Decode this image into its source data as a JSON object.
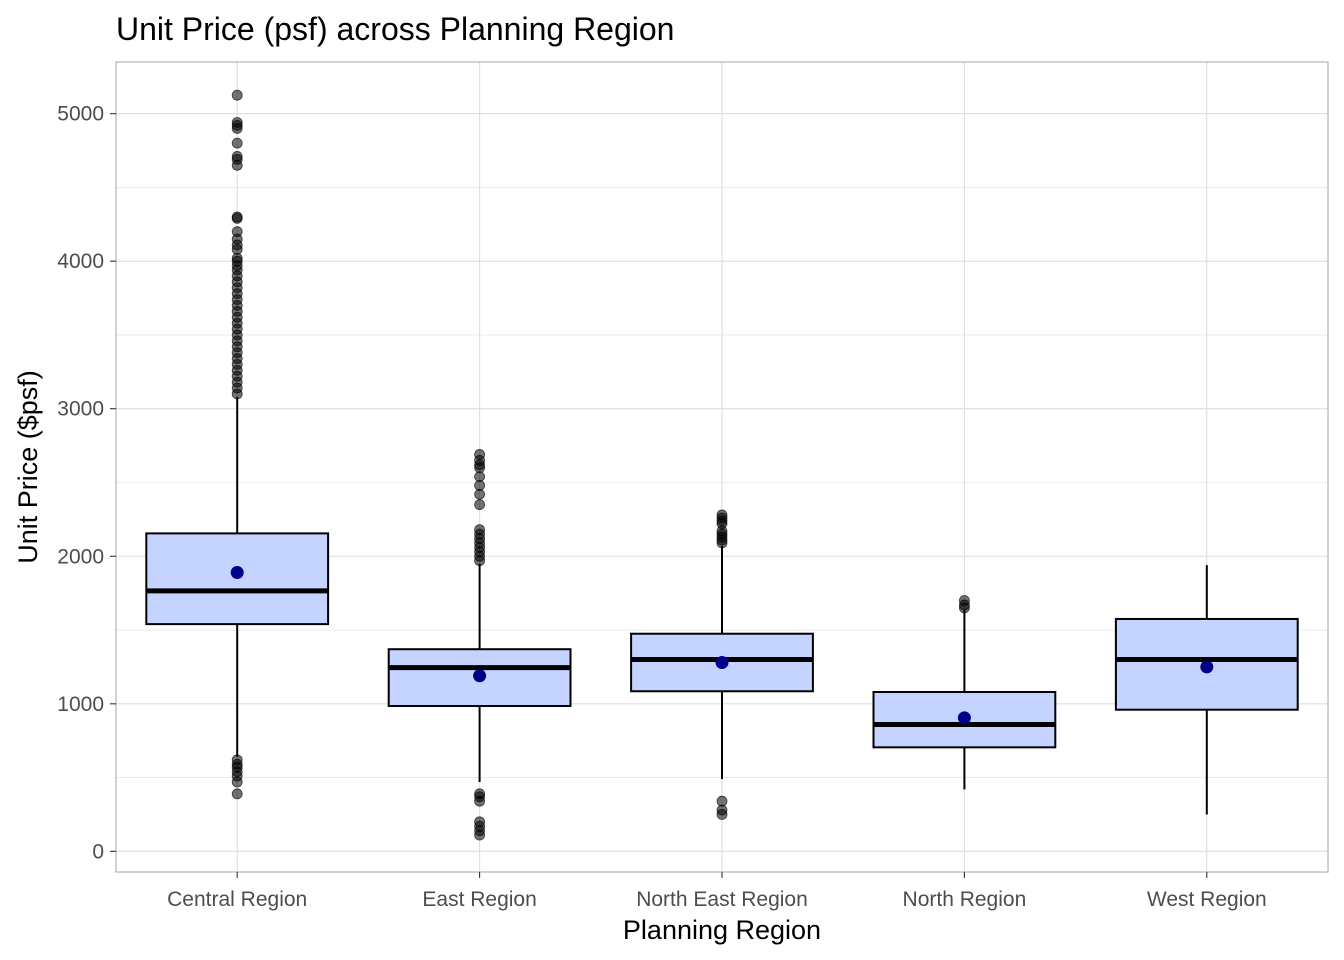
{
  "chart_data": {
    "type": "box",
    "title": "Unit Price (psf) across Planning Region",
    "xlabel": "Planning Region",
    "ylabel": "Unit Price ($psf)",
    "ylim": [
      -140,
      5350
    ],
    "y_ticks": [
      0,
      1000,
      2000,
      3000,
      4000,
      5000
    ],
    "y_tick_labels": [
      "0",
      "1000",
      "2000",
      "3000",
      "4000",
      "5000"
    ],
    "grid": true,
    "colors": {
      "box_fill": "#c4d3ff",
      "box_stroke": "#000000",
      "mean_point": "#00008b",
      "outlier": "#000000",
      "grid": "#dedede",
      "panel_border": "#b3b3b3"
    },
    "categories": [
      "Central Region",
      "East Region",
      "North East Region",
      "North Region",
      "West Region"
    ],
    "boxes": [
      {
        "category": "Central Region",
        "whisker_low": 640,
        "q1": 1540,
        "median": 1765,
        "q3": 2155,
        "whisker_high": 3080,
        "mean": 1890,
        "outliers": [
          5125,
          4940,
          4920,
          4900,
          4800,
          4710,
          4690,
          4650,
          4300,
          4290,
          4200,
          4150,
          4110,
          4080,
          4020,
          4000,
          3970,
          3940,
          3900,
          3860,
          3820,
          3780,
          3740,
          3700,
          3660,
          3620,
          3580,
          3540,
          3500,
          3460,
          3420,
          3380,
          3340,
          3300,
          3260,
          3220,
          3180,
          3140,
          3100,
          620,
          590,
          570,
          540,
          510,
          470,
          390
        ]
      },
      {
        "category": "East Region",
        "whisker_low": 470,
        "q1": 985,
        "median": 1245,
        "q3": 1370,
        "whisker_high": 1950,
        "mean": 1190,
        "outliers": [
          2690,
          2650,
          2620,
          2600,
          2540,
          2480,
          2420,
          2350,
          2180,
          2150,
          2120,
          2090,
          2060,
          2030,
          2000,
          1970,
          390,
          370,
          340,
          200,
          170,
          140,
          110
        ]
      },
      {
        "category": "North East Region",
        "whisker_low": 490,
        "q1": 1085,
        "median": 1300,
        "q3": 1475,
        "whisker_high": 2070,
        "mean": 1280,
        "outliers": [
          2280,
          2260,
          2240,
          2220,
          2170,
          2150,
          2130,
          2110,
          2090,
          340,
          280,
          250
        ]
      },
      {
        "category": "North Region",
        "whisker_low": 420,
        "q1": 705,
        "median": 860,
        "q3": 1080,
        "whisker_high": 1640,
        "mean": 905,
        "outliers": [
          1700,
          1670,
          1650
        ]
      },
      {
        "category": "West Region",
        "whisker_low": 250,
        "q1": 960,
        "median": 1300,
        "q3": 1575,
        "whisker_high": 1940,
        "mean": 1250,
        "outliers": []
      }
    ]
  }
}
